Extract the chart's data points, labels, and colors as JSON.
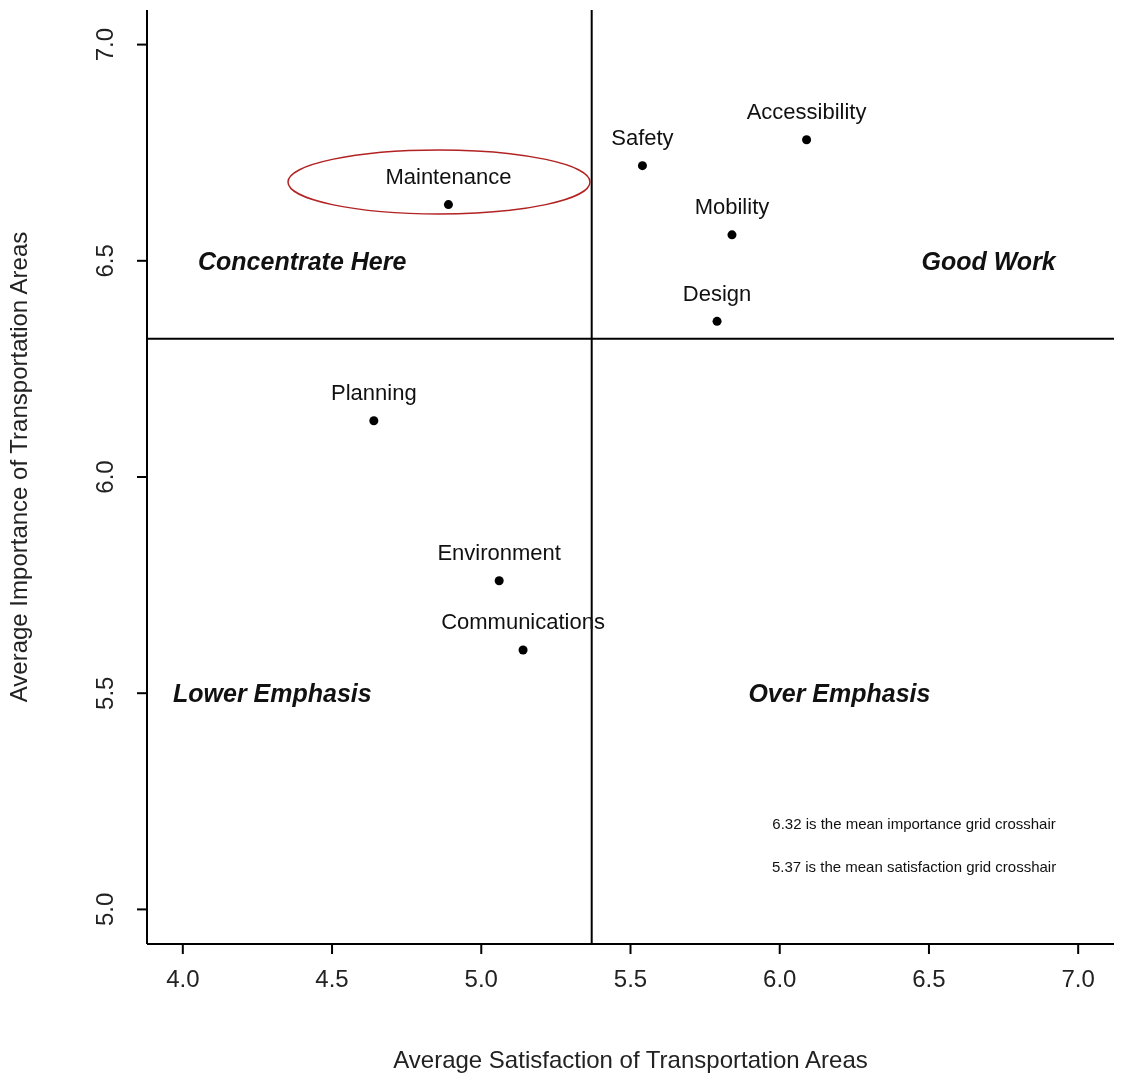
{
  "chart_data": {
    "type": "scatter",
    "xlabel": "Average Satisfaction of Transportation Areas",
    "ylabel": "Average Importance of Transportation Areas",
    "series": [
      {
        "name": "Maintenance",
        "color": "#000000",
        "x": [
          4.89
        ],
        "values": [
          6.63
        ]
      },
      {
        "name": "Safety",
        "color": "#000000",
        "x": [
          5.54
        ],
        "values": [
          6.72
        ]
      },
      {
        "name": "Accessibility",
        "color": "#000000",
        "x": [
          6.09
        ],
        "values": [
          6.78
        ]
      },
      {
        "name": "Mobility",
        "color": "#000000",
        "x": [
          5.84
        ],
        "values": [
          6.56
        ]
      },
      {
        "name": "Design",
        "color": "#000000",
        "x": [
          5.79
        ],
        "values": [
          6.36
        ]
      },
      {
        "name": "Planning",
        "color": "#000000",
        "x": [
          4.64
        ],
        "values": [
          6.13
        ]
      },
      {
        "name": "Environment",
        "color": "#000000",
        "x": [
          5.06
        ],
        "values": [
          5.76
        ]
      },
      {
        "name": "Communications",
        "color": "#000000",
        "x": [
          5.14
        ],
        "values": [
          5.6
        ]
      }
    ],
    "xlim": [
      3.88,
      7.12
    ],
    "ylim": [
      4.92,
      7.08
    ],
    "xticks": [
      {
        "value": 4,
        "label": "4.0"
      },
      {
        "value": 4.5,
        "label": "4.5"
      },
      {
        "value": 5,
        "label": "5.0"
      },
      {
        "value": 5.5,
        "label": "5.5"
      },
      {
        "value": 6,
        "label": "6.0"
      },
      {
        "value": 6.5,
        "label": "6.5"
      },
      {
        "value": 7,
        "label": "7.0"
      }
    ],
    "yticks": [
      {
        "value": 5,
        "label": "5.0"
      },
      {
        "value": 5.5,
        "label": "5.5"
      },
      {
        "value": 6,
        "label": "6.0"
      },
      {
        "value": 6.5,
        "label": "6.5"
      },
      {
        "value": 7,
        "label": "7.0"
      }
    ],
    "ref_lines": [
      {
        "axis": "y",
        "value": 6.32,
        "color": "#000000"
      },
      {
        "axis": "x",
        "value": 5.37,
        "color": "#000000"
      }
    ],
    "annotations": [
      "Concentrate Here",
      "Good Work",
      "Lower Emphasis",
      "Over Emphasis",
      "6.32 is the mean importance grid crosshair",
      "5.37 is the mean satisfaction grid crosshair"
    ],
    "marker": "circle",
    "grid": false,
    "legend": false
  }
}
